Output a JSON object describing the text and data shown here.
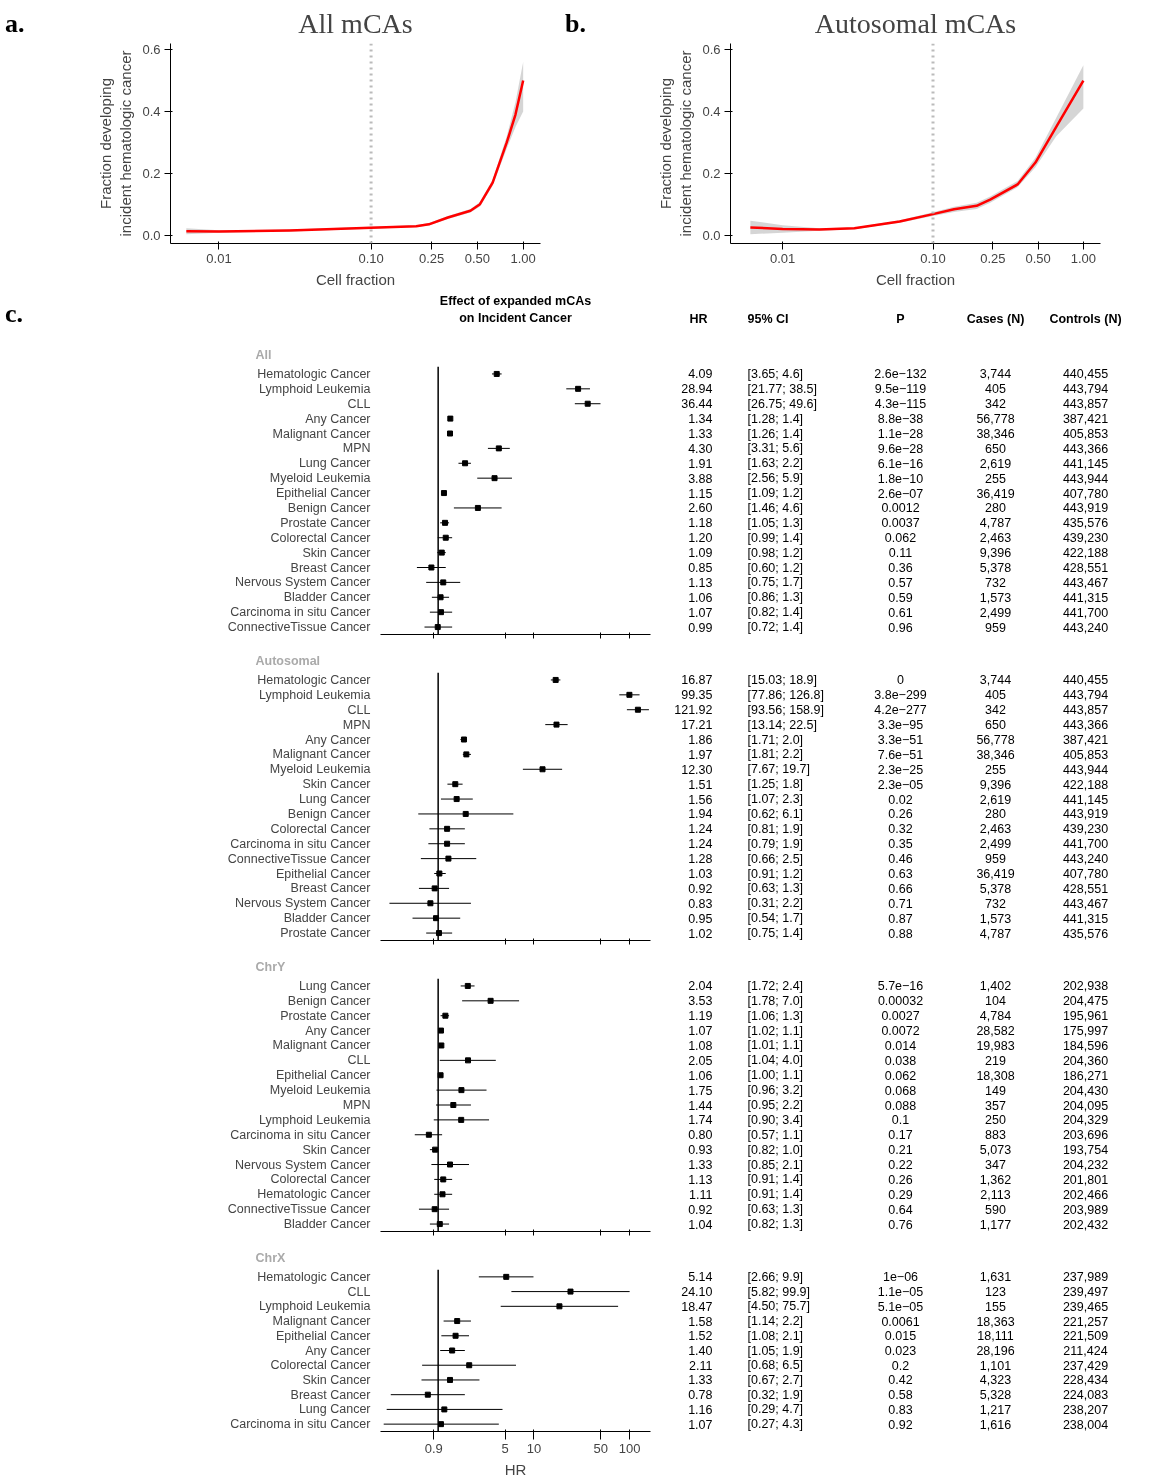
{
  "chart_data": [
    {
      "type": "line",
      "title": "All mCAs",
      "xlabel": "Cell fraction",
      "ylabel": "Fraction developing\nincident hematologic cancer",
      "annotations": [
        "a."
      ],
      "x": [
        0.0061,
        0.01,
        0.029,
        0.1,
        0.198,
        0.24,
        0.32,
        0.45,
        0.52,
        0.63,
        0.78,
        0.89,
        1.0
      ],
      "series": [
        {
          "color": "#ff0000",
          "values": [
            0.013,
            0.012,
            0.015,
            0.024,
            0.029,
            0.035,
            0.057,
            0.079,
            0.1,
            0.17,
            0.3,
            0.39,
            0.5
          ],
          "lower": [
            0.003,
            0.008,
            0.012,
            0.021,
            0.026,
            0.031,
            0.052,
            0.073,
            0.093,
            0.16,
            0.28,
            0.35,
            0.4
          ],
          "upper": [
            0.022,
            0.016,
            0.018,
            0.027,
            0.032,
            0.039,
            0.062,
            0.085,
            0.107,
            0.18,
            0.32,
            0.43,
            0.56
          ]
        }
      ],
      "log": "x",
      "xlim": [
        0.0048,
        1.3
      ],
      "ylim": [
        -0.027,
        0.62
      ],
      "xticks": [
        0.01,
        {
          "value": 0.1,
          "label": "0.10"
        },
        {
          "value": 0.25,
          "label": "0.25"
        },
        {
          "value": 0.5,
          "label": "0.50"
        },
        {
          "value": 1,
          "label": "1.00"
        }
      ],
      "yticks": [
        {
          "value": 0,
          "label": "0.0"
        },
        {
          "value": 0.2,
          "label": "0.2"
        },
        {
          "value": 0.4,
          "label": "0.4"
        },
        {
          "value": 0.6,
          "label": "0.6"
        }
      ],
      "ref_lines": [
        {
          "axis": "x",
          "value": 0.1,
          "color": "#bbbbbb",
          "line_style": "dotted"
        }
      ]
    },
    {
      "type": "line",
      "title": "Autosomal mCAs",
      "xlabel": "Cell fraction",
      "ylabel": "Fraction developing\nincident hematologic cancer",
      "annotations": [
        "b."
      ],
      "x": [
        0.0061,
        0.01,
        0.0175,
        0.03,
        0.06,
        0.1,
        0.138,
        0.195,
        0.24,
        0.365,
        0.48,
        0.66,
        1.0
      ],
      "series": [
        {
          "color": "#ff0000",
          "values": [
            0.025,
            0.02,
            0.018,
            0.022,
            0.044,
            0.068,
            0.084,
            0.095,
            0.115,
            0.164,
            0.235,
            0.35,
            0.5
          ],
          "lower": [
            0.003,
            0.008,
            0.014,
            0.019,
            0.04,
            0.062,
            0.075,
            0.085,
            0.105,
            0.155,
            0.22,
            0.32,
            0.41
          ],
          "upper": [
            0.047,
            0.032,
            0.022,
            0.025,
            0.048,
            0.074,
            0.092,
            0.105,
            0.125,
            0.175,
            0.25,
            0.38,
            0.55
          ]
        }
      ],
      "log": "x",
      "xlim": [
        0.0045,
        1.3
      ],
      "ylim": [
        -0.027,
        0.62
      ],
      "xticks": [
        0.01,
        {
          "value": 0.1,
          "label": "0.10"
        },
        {
          "value": 0.25,
          "label": "0.25"
        },
        {
          "value": 0.5,
          "label": "0.50"
        },
        {
          "value": 1,
          "label": "1.00"
        }
      ],
      "yticks": [
        {
          "value": 0,
          "label": "0.0"
        },
        {
          "value": 0.2,
          "label": "0.2"
        },
        {
          "value": 0.4,
          "label": "0.4"
        },
        {
          "value": 0.6,
          "label": "0.6"
        }
      ],
      "ref_lines": [
        {
          "axis": "x",
          "value": 0.1,
          "color": "#bbbbbb",
          "line_style": "dotted"
        }
      ]
    },
    {
      "type": "scatter",
      "orientation": "horizontal",
      "title": "All",
      "marker": "square",
      "log": "x",
      "tick_labels": "y",
      "xlim": [
        0.25,
        165
      ],
      "xticks": [
        0.9,
        5,
        10,
        50,
        100
      ],
      "ref_lines": [
        {
          "axis": "x",
          "value": 1,
          "color": "#000000"
        }
      ],
      "categories": [
        "Hematologic Cancer",
        "Lymphoid Leukemia",
        "CLL",
        "Any Cancer",
        "Malignant Cancer",
        "MPN",
        "Lung Cancer",
        "Myeloid Leukemia",
        "Epithelial Cancer",
        "Benign Cancer",
        "Prostate Cancer",
        "Colorectal Cancer",
        "Skin Cancer",
        "Breast Cancer",
        "Nervous System Cancer",
        "Bladder Cancer",
        "Carcinoma in situ Cancer",
        "ConnectiveTissue Cancer"
      ],
      "series": [
        {
          "color": "#000000",
          "values": [
            4.09,
            28.94,
            36.44,
            1.34,
            1.33,
            4.3,
            1.91,
            3.88,
            1.15,
            2.6,
            1.18,
            1.2,
            1.09,
            0.85,
            1.13,
            1.06,
            1.07,
            0.99
          ],
          "value_labels": [
            "4.09",
            "28.94",
            "36.44",
            "1.34",
            "1.33",
            "4.30",
            "1.91",
            "3.88",
            "1.15",
            "2.60",
            "1.18",
            "1.20",
            "1.09",
            "0.85",
            "1.13",
            "1.06",
            "1.07",
            "0.99"
          ],
          "errors": [
            [
              3.65,
              4.6
            ],
            [
              21.77,
              38.5
            ],
            [
              26.75,
              49.6
            ],
            [
              1.28,
              1.4
            ],
            [
              1.26,
              1.4
            ],
            [
              3.31,
              5.6
            ],
            [
              1.63,
              2.2
            ],
            [
              2.56,
              5.9
            ],
            [
              1.09,
              1.2
            ],
            [
              1.46,
              4.6
            ],
            [
              1.05,
              1.3
            ],
            [
              0.99,
              1.4
            ],
            [
              0.98,
              1.2
            ],
            [
              0.6,
              1.2
            ],
            [
              0.75,
              1.7
            ],
            [
              0.86,
              1.3
            ],
            [
              0.82,
              1.4
            ],
            [
              0.72,
              1.4
            ]
          ]
        }
      ],
      "annotations": [
        "c.",
        "Effect of expanded mCAs\non Incident Cancer",
        "HR",
        "95% CI",
        "P",
        "Cases (N)",
        "Controls (N)",
        "[3.65; 4.6]",
        "2.6e−132",
        "3,744",
        "440,455",
        "[21.77; 38.5]",
        "9.5e−119",
        "405",
        "443,794",
        "[26.75; 49.6]",
        "4.3e−115",
        "342",
        "443,857",
        "[1.28; 1.4]",
        "8.8e−38",
        "56,778",
        "387,421",
        "[1.26; 1.4]",
        "1.1e−28",
        "38,346",
        "405,853",
        "[3.31; 5.6]",
        "9.6e−28",
        "650",
        "443,366",
        "[1.63; 2.2]",
        "6.1e−16",
        "2,619",
        "441,145",
        "[2.56; 5.9]",
        "1.8e−10",
        "255",
        "443,944",
        "[1.09; 1.2]",
        "2.6e−07",
        "36,419",
        "407,780",
        "[1.46; 4.6]",
        "0.0012",
        "280",
        "443,919",
        "[1.05; 1.3]",
        "0.0037",
        "4,787",
        "435,576",
        "[0.99; 1.4]",
        "0.062",
        "2,463",
        "439,230",
        "[0.98; 1.2]",
        "0.11",
        "9,396",
        "422,188",
        "[0.60; 1.2]",
        "0.36",
        "5,378",
        "428,551",
        "[0.75; 1.7]",
        "0.57",
        "732",
        "443,467",
        "[0.86; 1.3]",
        "0.59",
        "1,573",
        "441,315",
        "[0.82; 1.4]",
        "0.61",
        "2,499",
        "441,700",
        "[0.72; 1.4]",
        "0.96",
        "959",
        "443,240"
      ]
    },
    {
      "type": "scatter",
      "orientation": "horizontal",
      "title": "Autosomal",
      "marker": "square",
      "log": "x",
      "tick_labels": "y",
      "xlim": [
        0.25,
        165
      ],
      "xticks": [
        0.9,
        5,
        10,
        50,
        100
      ],
      "ref_lines": [
        {
          "axis": "x",
          "value": 1,
          "color": "#000000"
        }
      ],
      "categories": [
        "Hematologic Cancer",
        "Lymphoid Leukemia",
        "CLL",
        "MPN",
        "Any Cancer",
        "Malignant Cancer",
        "Myeloid Leukemia",
        "Skin Cancer",
        "Lung Cancer",
        "Benign Cancer",
        "Colorectal Cancer",
        "Carcinoma in situ Cancer",
        "ConnectiveTissue Cancer",
        "Epithelial Cancer",
        "Breast Cancer",
        "Nervous System Cancer",
        "Bladder Cancer",
        "Prostate Cancer"
      ],
      "series": [
        {
          "color": "#000000",
          "values": [
            16.87,
            99.35,
            121.92,
            17.21,
            1.86,
            1.97,
            12.3,
            1.51,
            1.56,
            1.94,
            1.24,
            1.24,
            1.28,
            1.03,
            0.92,
            0.83,
            0.95,
            1.02
          ],
          "value_labels": [
            "16.87",
            "99.35",
            "121.92",
            "17.21",
            "1.86",
            "1.97",
            "12.30",
            "1.51",
            "1.56",
            "1.94",
            "1.24",
            "1.24",
            "1.28",
            "1.03",
            "0.92",
            "0.83",
            "0.95",
            "1.02"
          ],
          "errors": [
            [
              15.03,
              18.9
            ],
            [
              77.86,
              126.8
            ],
            [
              93.56,
              158.9
            ],
            [
              13.14,
              22.5
            ],
            [
              1.71,
              2.0
            ],
            [
              1.81,
              2.2
            ],
            [
              7.67,
              19.7
            ],
            [
              1.25,
              1.8
            ],
            [
              1.07,
              2.3
            ],
            [
              0.62,
              6.1
            ],
            [
              0.81,
              1.9
            ],
            [
              0.79,
              1.9
            ],
            [
              0.66,
              2.5
            ],
            [
              0.91,
              1.2
            ],
            [
              0.63,
              1.3
            ],
            [
              0.31,
              2.2
            ],
            [
              0.54,
              1.7
            ],
            [
              0.75,
              1.4
            ]
          ]
        }
      ],
      "annotations": [
        "[15.03; 18.9]",
        "0",
        "3,744",
        "440,455",
        "[77.86; 126.8]",
        "3.8e−299",
        "405",
        "443,794",
        "[93.56; 158.9]",
        "4.2e−277",
        "342",
        "443,857",
        "[13.14; 22.5]",
        "3.3e−95",
        "650",
        "443,366",
        "[1.71; 2.0]",
        "3.3e−51",
        "56,778",
        "387,421",
        "[1.81; 2.2]",
        "7.6e−51",
        "38,346",
        "405,853",
        "[7.67; 19.7]",
        "2.3e−25",
        "255",
        "443,944",
        "[1.25; 1.8]",
        "2.3e−05",
        "9,396",
        "422,188",
        "[1.07; 2.3]",
        "0.02",
        "2,619",
        "441,145",
        "[0.62; 6.1]",
        "0.26",
        "280",
        "443,919",
        "[0.81; 1.9]",
        "0.32",
        "2,463",
        "439,230",
        "[0.79; 1.9]",
        "0.35",
        "2,499",
        "441,700",
        "[0.66; 2.5]",
        "0.46",
        "959",
        "443,240",
        "[0.91; 1.2]",
        "0.63",
        "36,419",
        "407,780",
        "[0.63; 1.3]",
        "0.66",
        "5,378",
        "428,551",
        "[0.31; 2.2]",
        "0.71",
        "732",
        "443,467",
        "[0.54; 1.7]",
        "0.87",
        "1,573",
        "441,315",
        "[0.75; 1.4]",
        "0.88",
        "4,787",
        "435,576"
      ]
    },
    {
      "type": "scatter",
      "orientation": "horizontal",
      "title": "ChrY",
      "marker": "square",
      "log": "x",
      "tick_labels": "y",
      "xlim": [
        0.25,
        165
      ],
      "xticks": [
        0.9,
        5,
        10,
        50,
        100
      ],
      "ref_lines": [
        {
          "axis": "x",
          "value": 1,
          "color": "#000000"
        }
      ],
      "categories": [
        "Lung Cancer",
        "Benign Cancer",
        "Prostate Cancer",
        "Any Cancer",
        "Malignant Cancer",
        "CLL",
        "Epithelial Cancer",
        "Myeloid Leukemia",
        "MPN",
        "Lymphoid Leukemia",
        "Carcinoma in situ Cancer",
        "Skin Cancer",
        "Nervous System Cancer",
        "Colorectal Cancer",
        "Hematologic Cancer",
        "ConnectiveTissue Cancer",
        "Bladder Cancer"
      ],
      "series": [
        {
          "color": "#000000",
          "values": [
            2.04,
            3.53,
            1.19,
            1.07,
            1.08,
            2.05,
            1.06,
            1.75,
            1.44,
            1.74,
            0.8,
            0.93,
            1.33,
            1.13,
            1.11,
            0.92,
            1.04
          ],
          "value_labels": [
            "2.04",
            "3.53",
            "1.19",
            "1.07",
            "1.08",
            "2.05",
            "1.06",
            "1.75",
            "1.44",
            "1.74",
            "0.80",
            "0.93",
            "1.33",
            "1.13",
            "1.11",
            "0.92",
            "1.04"
          ],
          "errors": [
            [
              1.72,
              2.4
            ],
            [
              1.78,
              7.0
            ],
            [
              1.06,
              1.3
            ],
            [
              1.02,
              1.1
            ],
            [
              1.01,
              1.1
            ],
            [
              1.04,
              4.0
            ],
            [
              1.0,
              1.1
            ],
            [
              0.96,
              3.2
            ],
            [
              0.95,
              2.2
            ],
            [
              0.9,
              3.4
            ],
            [
              0.57,
              1.1
            ],
            [
              0.82,
              1.0
            ],
            [
              0.85,
              2.1
            ],
            [
              0.91,
              1.4
            ],
            [
              0.91,
              1.4
            ],
            [
              0.63,
              1.3
            ],
            [
              0.82,
              1.3
            ]
          ]
        }
      ],
      "annotations": [
        "[1.72; 2.4]",
        "5.7e−16",
        "1,402",
        "202,938",
        "[1.78; 7.0]",
        "0.00032",
        "104",
        "204,475",
        "[1.06; 1.3]",
        "0.0027",
        "4,784",
        "195,961",
        "[1.02; 1.1]",
        "0.0072",
        "28,582",
        "175,997",
        "[1.01; 1.1]",
        "0.014",
        "19,983",
        "184,596",
        "[1.04; 4.0]",
        "0.038",
        "219",
        "204,360",
        "[1.00; 1.1]",
        "0.062",
        "18,308",
        "186,271",
        "[0.96; 3.2]",
        "0.068",
        "149",
        "204,430",
        "[0.95; 2.2]",
        "0.088",
        "357",
        "204,095",
        "[0.90; 3.4]",
        "0.1",
        "250",
        "204,329",
        "[0.57; 1.1]",
        "0.17",
        "883",
        "203,696",
        "[0.82; 1.0]",
        "0.21",
        "5,073",
        "193,754",
        "[0.85; 2.1]",
        "0.22",
        "347",
        "204,232",
        "[0.91; 1.4]",
        "0.26",
        "1,362",
        "201,801",
        "[0.91; 1.4]",
        "0.29",
        "2,113",
        "202,466",
        "[0.63; 1.3]",
        "0.64",
        "590",
        "203,989",
        "[0.82; 1.3]",
        "0.76",
        "1,177",
        "202,432"
      ]
    },
    {
      "type": "scatter",
      "orientation": "horizontal",
      "title": "ChrX",
      "xlabel": "HR",
      "marker": "square",
      "log": "x",
      "xlim": [
        0.25,
        165
      ],
      "xticks": [
        0.9,
        5,
        10,
        50,
        100
      ],
      "ref_lines": [
        {
          "axis": "x",
          "value": 1,
          "color": "#000000"
        }
      ],
      "categories": [
        "Hematologic Cancer",
        "CLL",
        "Lymphoid Leukemia",
        "Malignant Cancer",
        "Epithelial Cancer",
        "Any Cancer",
        "Colorectal Cancer",
        "Skin Cancer",
        "Breast Cancer",
        "Lung Cancer",
        "Carcinoma in situ Cancer"
      ],
      "series": [
        {
          "color": "#000000",
          "values": [
            5.14,
            24.1,
            18.47,
            1.58,
            1.52,
            1.4,
            2.11,
            1.33,
            0.78,
            1.16,
            1.07
          ],
          "value_labels": [
            "5.14",
            "24.10",
            "18.47",
            "1.58",
            "1.52",
            "1.40",
            "2.11",
            "1.33",
            "0.78",
            "1.16",
            "1.07"
          ],
          "errors": [
            [
              2.66,
              9.9
            ],
            [
              5.82,
              99.9
            ],
            [
              4.5,
              75.7
            ],
            [
              1.14,
              2.2
            ],
            [
              1.08,
              2.1
            ],
            [
              1.05,
              1.9
            ],
            [
              0.68,
              6.5
            ],
            [
              0.67,
              2.7
            ],
            [
              0.32,
              1.9
            ],
            [
              0.29,
              4.7
            ],
            [
              0.27,
              4.3
            ]
          ]
        }
      ],
      "annotations": [
        "[2.66; 9.9]",
        "1e−06",
        "1,631",
        "237,989",
        "[5.82; 99.9]",
        "1.1e−05",
        "123",
        "239,497",
        "[4.50; 75.7]",
        "5.1e−05",
        "155",
        "239,465",
        "[1.14; 2.2]",
        "0.0061",
        "18,363",
        "221,257",
        "[1.08; 2.1]",
        "0.015",
        "18,111",
        "221,509",
        "[1.05; 1.9]",
        "0.023",
        "28,196",
        "211,424",
        "[0.68; 6.5]",
        "0.2",
        "1,101",
        "237,429",
        "[0.67; 2.7]",
        "0.42",
        "4,323",
        "228,434",
        "[0.32; 1.9]",
        "0.58",
        "5,328",
        "224,083",
        "[0.29; 4.7]",
        "0.83",
        "1,217",
        "238,207",
        "[0.27; 4.3]",
        "0.92",
        "1,616",
        "238,004"
      ]
    }
  ]
}
